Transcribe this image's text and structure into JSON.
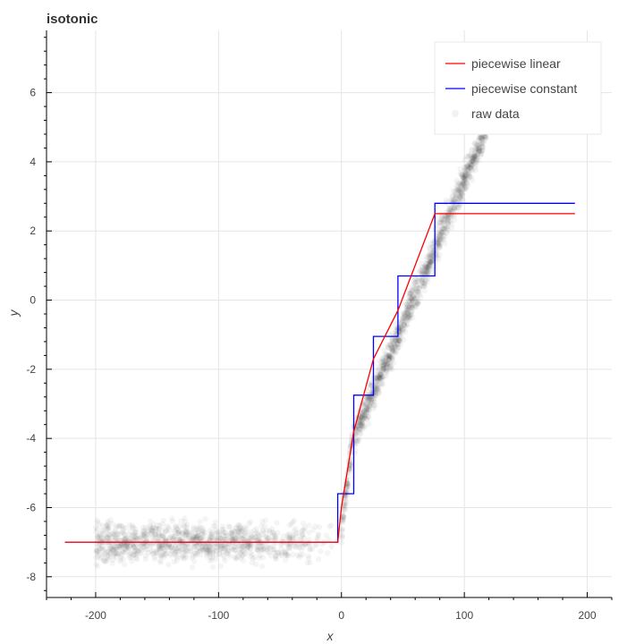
{
  "chart_data": {
    "type": "line",
    "title": "isotonic",
    "xlabel": "x",
    "ylabel": "y",
    "xlim": [
      -240,
      220
    ],
    "ylim": [
      -8.6,
      7.8
    ],
    "x_ticks": [
      -200,
      -100,
      0,
      100,
      200
    ],
    "y_ticks": [
      -8,
      -6,
      -4,
      -2,
      0,
      2,
      4,
      6
    ],
    "grid": true,
    "legend_position": "top-right",
    "series": [
      {
        "name": "piecewise linear",
        "type": "line",
        "color": "#ff0000",
        "x": [
          -225,
          -3,
          0,
          10,
          26,
          46,
          76,
          190
        ],
        "y": [
          -7.0,
          -7.0,
          -6.0,
          -3.8,
          -1.7,
          -0.3,
          2.5,
          2.5
        ]
      },
      {
        "name": "piecewise constant",
        "type": "step",
        "color": "#0000ff",
        "x": [
          -225,
          -3,
          -3,
          10,
          10,
          26,
          26,
          46,
          46,
          76,
          76,
          190
        ],
        "y": [
          -7.0,
          -7.0,
          -5.6,
          -5.6,
          -2.75,
          -2.75,
          -1.05,
          -1.05,
          0.7,
          0.7,
          2.8,
          2.8
        ]
      },
      {
        "name": "raw data",
        "type": "scatter",
        "color": "#000000",
        "opacity": 0.04,
        "description_clusters": [
          {
            "x_range": [
              -200,
              0
            ],
            "y_mean": -7.0,
            "y_spread": 0.6
          },
          {
            "x_range": [
              0,
              120
            ],
            "y_formula": "steep rise from -7 to 4"
          }
        ]
      }
    ]
  }
}
